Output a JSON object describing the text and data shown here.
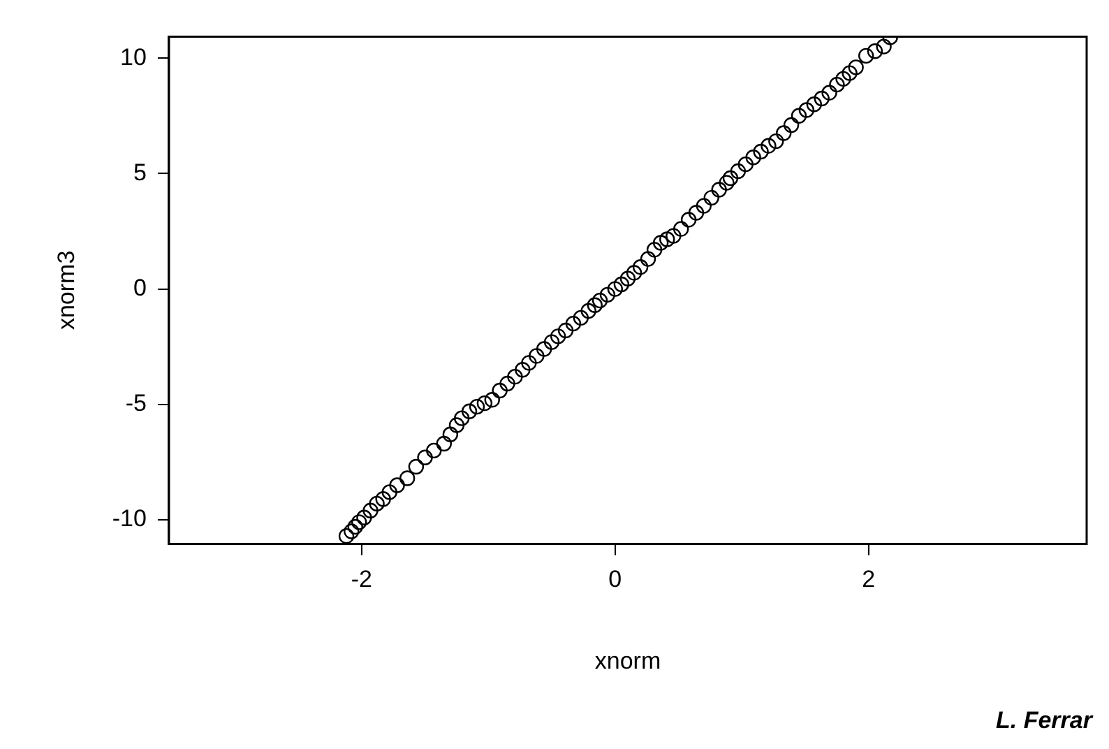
{
  "chart_data": {
    "type": "scatter",
    "xlabel": "xnorm",
    "ylabel": "xnorm3",
    "annotations": [
      "L. Ferrar"
    ],
    "xlim": [
      -3.52,
      3.72
    ],
    "ylim": [
      -11.04,
      10.93
    ],
    "xticks": [
      -2,
      0,
      2
    ],
    "yticks": [
      -10,
      -5,
      0,
      5,
      10
    ],
    "grid": false,
    "legend": false,
    "marker": "circle",
    "series": [
      {
        "color": "#000000",
        "x": [
          -2.12,
          -2.08,
          -2.05,
          -2.02,
          -1.98,
          -1.93,
          -1.88,
          -1.83,
          -1.78,
          -1.72,
          -1.64,
          -1.57,
          -1.5,
          -1.43,
          -1.35,
          -1.3,
          -1.25,
          -1.21,
          -1.15,
          -1.09,
          -1.03,
          -0.97,
          -0.91,
          -0.85,
          -0.79,
          -0.73,
          -0.68,
          -0.62,
          -0.56,
          -0.5,
          -0.45,
          -0.39,
          -0.33,
          -0.27,
          -0.21,
          -0.16,
          -0.12,
          -0.06,
          0.0,
          0.05,
          0.1,
          0.15,
          0.2,
          0.26,
          0.31,
          0.36,
          0.41,
          0.46,
          0.52,
          0.58,
          0.64,
          0.7,
          0.76,
          0.82,
          0.88,
          0.91,
          0.97,
          1.03,
          1.09,
          1.15,
          1.21,
          1.27,
          1.33,
          1.39,
          1.45,
          1.51,
          1.57,
          1.63,
          1.69,
          1.75,
          1.8,
          1.85,
          1.9,
          1.98,
          2.05,
          2.12,
          2.17
        ],
        "values": [
          -10.7,
          -10.5,
          -10.3,
          -10.1,
          -9.9,
          -9.6,
          -9.3,
          -9.1,
          -8.8,
          -8.5,
          -8.2,
          -7.7,
          -7.3,
          -7.0,
          -6.7,
          -6.3,
          -5.9,
          -5.6,
          -5.3,
          -5.1,
          -4.95,
          -4.8,
          -4.4,
          -4.1,
          -3.8,
          -3.5,
          -3.2,
          -2.9,
          -2.6,
          -2.3,
          -2.05,
          -1.8,
          -1.5,
          -1.25,
          -0.95,
          -0.7,
          -0.5,
          -0.25,
          0.0,
          0.2,
          0.45,
          0.7,
          0.95,
          1.3,
          1.7,
          2.0,
          2.15,
          2.3,
          2.6,
          3.0,
          3.3,
          3.6,
          3.95,
          4.3,
          4.6,
          4.8,
          5.1,
          5.4,
          5.7,
          5.95,
          6.2,
          6.4,
          6.75,
          7.1,
          7.5,
          7.75,
          8.0,
          8.25,
          8.5,
          8.85,
          9.1,
          9.35,
          9.6,
          10.1,
          10.3,
          10.5,
          10.9
        ]
      }
    ]
  }
}
